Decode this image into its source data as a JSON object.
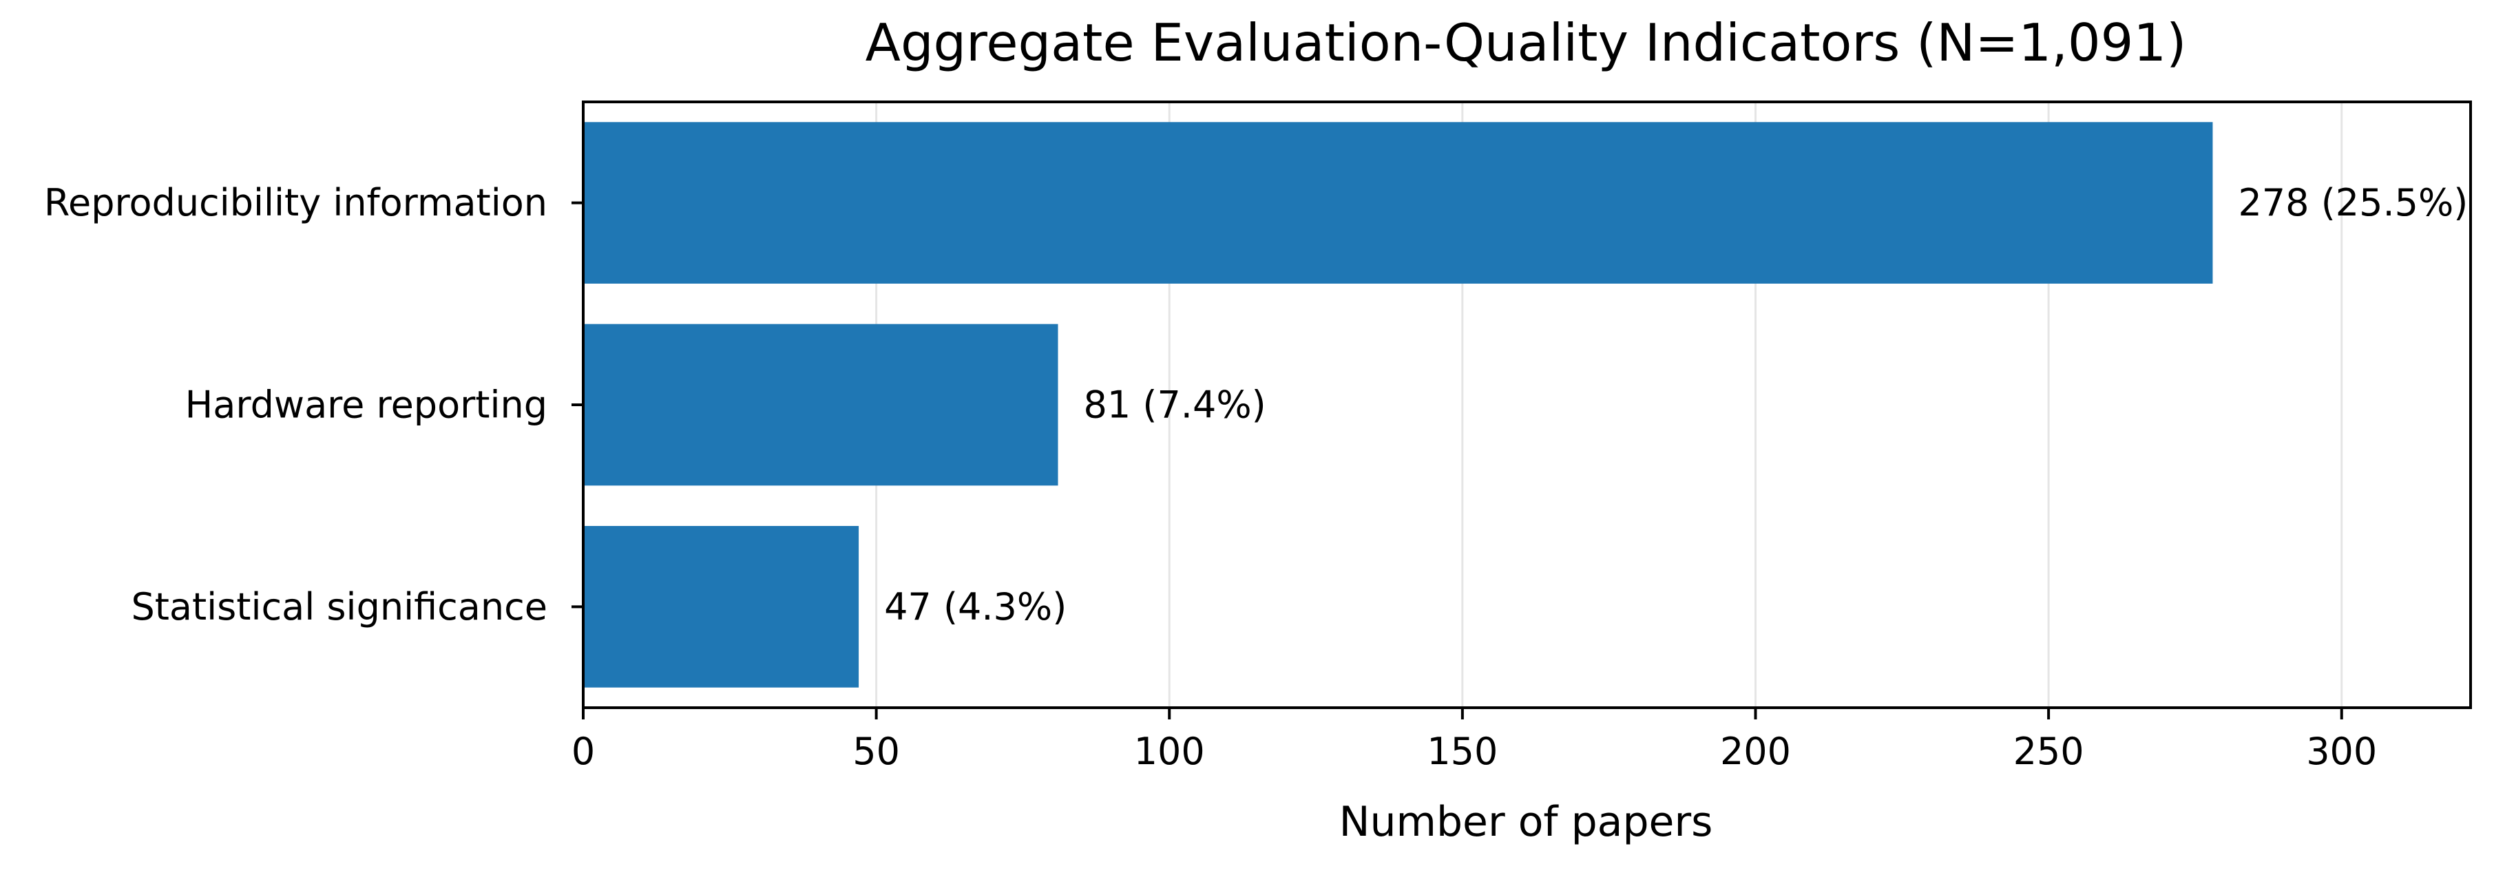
{
  "chart_data": {
    "type": "bar",
    "orientation": "horizontal",
    "title": "Aggregate Evaluation-Quality Indicators (N=1,091)",
    "xlabel": "Number of papers",
    "ylabel": "",
    "categories": [
      "Reproducibility information",
      "Hardware reporting",
      "Statistical significance"
    ],
    "values": [
      278,
      81,
      47
    ],
    "data_labels": [
      "278 (25.5%)",
      "81 (7.4%)",
      "47 (4.3%)"
    ],
    "xlim": [
      0,
      322
    ],
    "xticks": [
      0,
      50,
      100,
      150,
      200,
      250,
      300
    ],
    "xtick_labels": [
      "0",
      "50",
      "100",
      "150",
      "200",
      "250",
      "300"
    ],
    "grid": "vertical",
    "legend": "none",
    "colors": {
      "bar": "#1f77b4",
      "grid": "#e5e5e5",
      "axis": "#000000"
    }
  }
}
